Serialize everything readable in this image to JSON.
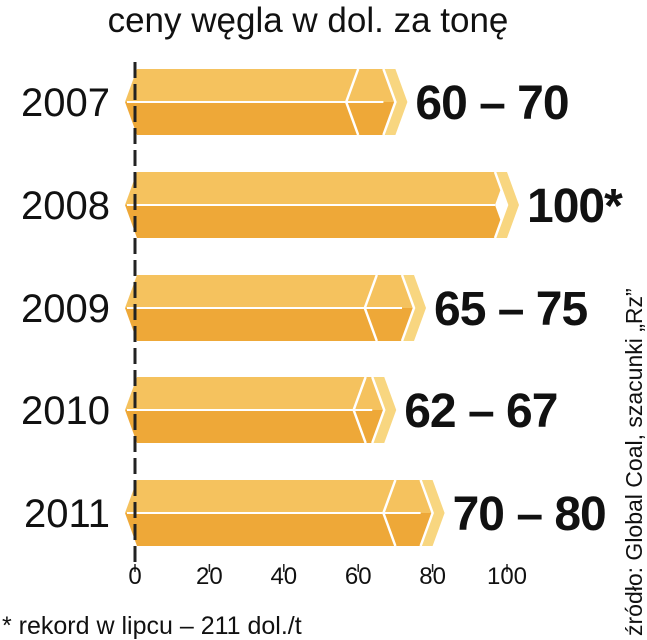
{
  "title": "ceny węgla w dol. za tonę",
  "footnote": "* rekord w lipcu – 211 dol./t",
  "source": "źródło: Global Coal, szacunki „Rz”",
  "colors": {
    "bar_top": "#F5C25E",
    "bar_bottom": "#EEA838",
    "bar_side": "#F8D680",
    "bar_edge": "#FFFFFF",
    "axis": "#222222",
    "text": "#111111"
  },
  "chart_data": {
    "type": "bar",
    "orientation": "horizontal",
    "title": "ceny węgla w dol. za tonę",
    "categories": [
      "2007",
      "2008",
      "2009",
      "2010",
      "2011"
    ],
    "series": [
      {
        "low": [
          60,
          100,
          65,
          62,
          70
        ],
        "high": [
          70,
          100,
          75,
          67,
          80
        ]
      }
    ],
    "data_labels": [
      "60 – 70",
      "100*",
      "65 – 75",
      "62 – 67",
      "70 – 80"
    ],
    "x_ticks": [
      0,
      20,
      40,
      60,
      80,
      100
    ],
    "xlim": [
      0,
      100
    ],
    "grid": false,
    "legend": "none"
  }
}
